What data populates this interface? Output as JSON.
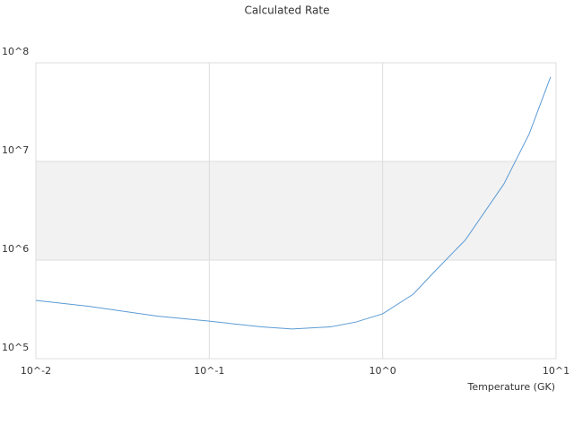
{
  "chart_data": {
    "type": "line",
    "title": "Calculated Rate",
    "x_label": "Temperature (GK)",
    "log_x": true,
    "log_y": true,
    "alternate_bands": true,
    "band_color": "#f2f2f2",
    "x": [
      0.01,
      0.02,
      0.05,
      0.1,
      0.2,
      0.3,
      0.5,
      0.7,
      1,
      1.5,
      2,
      3,
      5,
      7,
      9.3
    ],
    "series": [
      {
        "name": "Rate",
        "color": "#5b9bd5",
        "values": [
          390000,
          340000,
          270000,
          240000,
          210000,
          200000,
          210000,
          235000,
          285000,
          450000,
          770000,
          1600000,
          5900000,
          19000000,
          72000000
        ]
      }
    ],
    "xlim": [
      0.01,
      10
    ],
    "xticks": [
      {
        "value": 0.01,
        "label": "10^-2"
      },
      {
        "value": 0.1,
        "label": "10^-1"
      },
      {
        "value": 1,
        "label": "10^0"
      },
      {
        "value": 10,
        "label": "10^1"
      }
    ],
    "ylim": [
      100000,
      100000000
    ],
    "yticks": [
      {
        "value": 100000,
        "label": "10^5"
      },
      {
        "value": 1000000,
        "label": "10^6"
      },
      {
        "value": 10000000,
        "label": "10^7"
      },
      {
        "value": 100000000,
        "label": "10^8"
      }
    ]
  }
}
